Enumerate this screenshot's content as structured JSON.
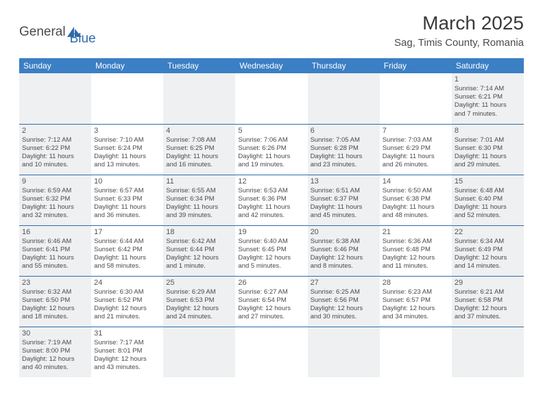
{
  "logo": {
    "text1": "General",
    "text2": "Blue"
  },
  "title": "March 2025",
  "subtitle": "Sag, Timis County, Romania",
  "colors": {
    "header_bg": "#3b7fc4",
    "header_text": "#ffffff",
    "border": "#2f6aa8",
    "shade": "#eef0f2",
    "text": "#4a4a4a"
  },
  "weekdays": [
    "Sunday",
    "Monday",
    "Tuesday",
    "Wednesday",
    "Thursday",
    "Friday",
    "Saturday"
  ],
  "weeks": [
    [
      {
        "shade": true
      },
      {
        "shade": false
      },
      {
        "shade": true
      },
      {
        "shade": false
      },
      {
        "shade": true
      },
      {
        "shade": false
      },
      {
        "day": "1",
        "shade": true,
        "sunrise": "Sunrise: 7:14 AM",
        "sunset": "Sunset: 6:21 PM",
        "daylight1": "Daylight: 11 hours",
        "daylight2": "and 7 minutes."
      }
    ],
    [
      {
        "day": "2",
        "shade": true,
        "sunrise": "Sunrise: 7:12 AM",
        "sunset": "Sunset: 6:22 PM",
        "daylight1": "Daylight: 11 hours",
        "daylight2": "and 10 minutes."
      },
      {
        "day": "3",
        "shade": false,
        "sunrise": "Sunrise: 7:10 AM",
        "sunset": "Sunset: 6:24 PM",
        "daylight1": "Daylight: 11 hours",
        "daylight2": "and 13 minutes."
      },
      {
        "day": "4",
        "shade": true,
        "sunrise": "Sunrise: 7:08 AM",
        "sunset": "Sunset: 6:25 PM",
        "daylight1": "Daylight: 11 hours",
        "daylight2": "and 16 minutes."
      },
      {
        "day": "5",
        "shade": false,
        "sunrise": "Sunrise: 7:06 AM",
        "sunset": "Sunset: 6:26 PM",
        "daylight1": "Daylight: 11 hours",
        "daylight2": "and 19 minutes."
      },
      {
        "day": "6",
        "shade": true,
        "sunrise": "Sunrise: 7:05 AM",
        "sunset": "Sunset: 6:28 PM",
        "daylight1": "Daylight: 11 hours",
        "daylight2": "and 23 minutes."
      },
      {
        "day": "7",
        "shade": false,
        "sunrise": "Sunrise: 7:03 AM",
        "sunset": "Sunset: 6:29 PM",
        "daylight1": "Daylight: 11 hours",
        "daylight2": "and 26 minutes."
      },
      {
        "day": "8",
        "shade": true,
        "sunrise": "Sunrise: 7:01 AM",
        "sunset": "Sunset: 6:30 PM",
        "daylight1": "Daylight: 11 hours",
        "daylight2": "and 29 minutes."
      }
    ],
    [
      {
        "day": "9",
        "shade": true,
        "sunrise": "Sunrise: 6:59 AM",
        "sunset": "Sunset: 6:32 PM",
        "daylight1": "Daylight: 11 hours",
        "daylight2": "and 32 minutes."
      },
      {
        "day": "10",
        "shade": false,
        "sunrise": "Sunrise: 6:57 AM",
        "sunset": "Sunset: 6:33 PM",
        "daylight1": "Daylight: 11 hours",
        "daylight2": "and 36 minutes."
      },
      {
        "day": "11",
        "shade": true,
        "sunrise": "Sunrise: 6:55 AM",
        "sunset": "Sunset: 6:34 PM",
        "daylight1": "Daylight: 11 hours",
        "daylight2": "and 39 minutes."
      },
      {
        "day": "12",
        "shade": false,
        "sunrise": "Sunrise: 6:53 AM",
        "sunset": "Sunset: 6:36 PM",
        "daylight1": "Daylight: 11 hours",
        "daylight2": "and 42 minutes."
      },
      {
        "day": "13",
        "shade": true,
        "sunrise": "Sunrise: 6:51 AM",
        "sunset": "Sunset: 6:37 PM",
        "daylight1": "Daylight: 11 hours",
        "daylight2": "and 45 minutes."
      },
      {
        "day": "14",
        "shade": false,
        "sunrise": "Sunrise: 6:50 AM",
        "sunset": "Sunset: 6:38 PM",
        "daylight1": "Daylight: 11 hours",
        "daylight2": "and 48 minutes."
      },
      {
        "day": "15",
        "shade": true,
        "sunrise": "Sunrise: 6:48 AM",
        "sunset": "Sunset: 6:40 PM",
        "daylight1": "Daylight: 11 hours",
        "daylight2": "and 52 minutes."
      }
    ],
    [
      {
        "day": "16",
        "shade": true,
        "sunrise": "Sunrise: 6:46 AM",
        "sunset": "Sunset: 6:41 PM",
        "daylight1": "Daylight: 11 hours",
        "daylight2": "and 55 minutes."
      },
      {
        "day": "17",
        "shade": false,
        "sunrise": "Sunrise: 6:44 AM",
        "sunset": "Sunset: 6:42 PM",
        "daylight1": "Daylight: 11 hours",
        "daylight2": "and 58 minutes."
      },
      {
        "day": "18",
        "shade": true,
        "sunrise": "Sunrise: 6:42 AM",
        "sunset": "Sunset: 6:44 PM",
        "daylight1": "Daylight: 12 hours",
        "daylight2": "and 1 minute."
      },
      {
        "day": "19",
        "shade": false,
        "sunrise": "Sunrise: 6:40 AM",
        "sunset": "Sunset: 6:45 PM",
        "daylight1": "Daylight: 12 hours",
        "daylight2": "and 5 minutes."
      },
      {
        "day": "20",
        "shade": true,
        "sunrise": "Sunrise: 6:38 AM",
        "sunset": "Sunset: 6:46 PM",
        "daylight1": "Daylight: 12 hours",
        "daylight2": "and 8 minutes."
      },
      {
        "day": "21",
        "shade": false,
        "sunrise": "Sunrise: 6:36 AM",
        "sunset": "Sunset: 6:48 PM",
        "daylight1": "Daylight: 12 hours",
        "daylight2": "and 11 minutes."
      },
      {
        "day": "22",
        "shade": true,
        "sunrise": "Sunrise: 6:34 AM",
        "sunset": "Sunset: 6:49 PM",
        "daylight1": "Daylight: 12 hours",
        "daylight2": "and 14 minutes."
      }
    ],
    [
      {
        "day": "23",
        "shade": true,
        "sunrise": "Sunrise: 6:32 AM",
        "sunset": "Sunset: 6:50 PM",
        "daylight1": "Daylight: 12 hours",
        "daylight2": "and 18 minutes."
      },
      {
        "day": "24",
        "shade": false,
        "sunrise": "Sunrise: 6:30 AM",
        "sunset": "Sunset: 6:52 PM",
        "daylight1": "Daylight: 12 hours",
        "daylight2": "and 21 minutes."
      },
      {
        "day": "25",
        "shade": true,
        "sunrise": "Sunrise: 6:29 AM",
        "sunset": "Sunset: 6:53 PM",
        "daylight1": "Daylight: 12 hours",
        "daylight2": "and 24 minutes."
      },
      {
        "day": "26",
        "shade": false,
        "sunrise": "Sunrise: 6:27 AM",
        "sunset": "Sunset: 6:54 PM",
        "daylight1": "Daylight: 12 hours",
        "daylight2": "and 27 minutes."
      },
      {
        "day": "27",
        "shade": true,
        "sunrise": "Sunrise: 6:25 AM",
        "sunset": "Sunset: 6:56 PM",
        "daylight1": "Daylight: 12 hours",
        "daylight2": "and 30 minutes."
      },
      {
        "day": "28",
        "shade": false,
        "sunrise": "Sunrise: 6:23 AM",
        "sunset": "Sunset: 6:57 PM",
        "daylight1": "Daylight: 12 hours",
        "daylight2": "and 34 minutes."
      },
      {
        "day": "29",
        "shade": true,
        "sunrise": "Sunrise: 6:21 AM",
        "sunset": "Sunset: 6:58 PM",
        "daylight1": "Daylight: 12 hours",
        "daylight2": "and 37 minutes."
      }
    ],
    [
      {
        "day": "30",
        "shade": true,
        "sunrise": "Sunrise: 7:19 AM",
        "sunset": "Sunset: 8:00 PM",
        "daylight1": "Daylight: 12 hours",
        "daylight2": "and 40 minutes."
      },
      {
        "day": "31",
        "shade": false,
        "sunrise": "Sunrise: 7:17 AM",
        "sunset": "Sunset: 8:01 PM",
        "daylight1": "Daylight: 12 hours",
        "daylight2": "and 43 minutes."
      },
      {
        "shade": true
      },
      {
        "shade": false
      },
      {
        "shade": true
      },
      {
        "shade": false
      },
      {
        "shade": true
      }
    ]
  ]
}
